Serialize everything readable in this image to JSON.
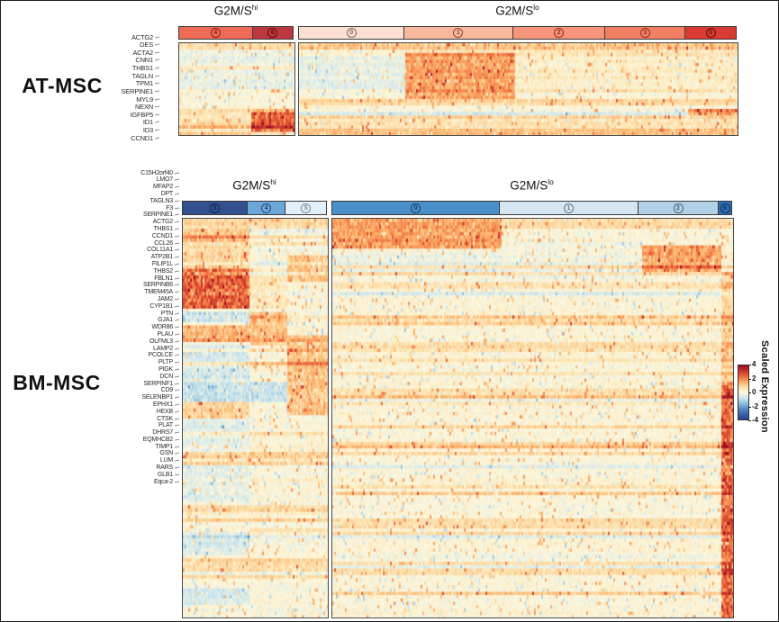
{
  "chart_data": {
    "type": "heatmap",
    "description": "Two single-cell scaled-expression heatmaps (AT-MSC and BM-MSC), columns grouped by cell-cycle status (G2M/S-high vs G2M/S-low) and cluster id, rows are genes.",
    "scale": {
      "label": "Scaled Expression",
      "domain": [
        -4,
        4
      ],
      "ticks": [
        "4",
        "2",
        "0",
        "-2",
        "-4"
      ],
      "colormap": [
        [
          4,
          "#9e0d21"
        ],
        [
          3.3,
          "#c22d27"
        ],
        [
          2.7,
          "#e0512f"
        ],
        [
          2.1,
          "#f58049"
        ],
        [
          1.5,
          "#fbb069"
        ],
        [
          0.9,
          "#fcd9a1"
        ],
        [
          0.35,
          "#fdeec6"
        ],
        [
          0,
          "#fbf6dd"
        ],
        [
          -0.25,
          "#eef2e1"
        ],
        [
          -0.8,
          "#cfe7ee"
        ],
        [
          -1.6,
          "#8fc2dc"
        ],
        [
          -2.6,
          "#4d7fbd"
        ],
        [
          -4,
          "#2a3f93"
        ]
      ]
    },
    "noise": {
      "mean": 0.08,
      "sd": 0.42,
      "warm_speckle": 0.07,
      "cool_speckle": 0.045
    },
    "panels": [
      {
        "panel_label": "AT-MSC",
        "row_labels": [
          "ACTG2",
          "DES",
          "ACTA2",
          "CNN1",
          "THBS1",
          "TAGLN",
          "TPM1",
          "SERPINE1",
          "MYL9",
          "NEXN",
          "IGFBP5",
          "ID1",
          "ID3",
          "CCND1"
        ],
        "column_groups": [
          {
            "label_base": "G2M/S",
            "label_sup": "hi",
            "seed": 11,
            "clusters": [
              {
                "id": "4",
                "frac": 0.648,
                "color": "#ef6b57",
                "ring": "#8c1f16"
              },
              {
                "id": "6",
                "frac": 0.352,
                "color": "#bd3740",
                "ring": "#5c0a12"
              }
            ],
            "hotspots": [
              {
                "x": [
                  0,
                  1
                ],
                "y": [
                  0,
                  0.07
                ],
                "v": 0.7
              },
              {
                "x": [
                  0,
                  1
                ],
                "y": [
                  0.07,
                  0.5
                ],
                "v": -0.35
              },
              {
                "x": [
                  0,
                  0.63
                ],
                "y": [
                  0.7,
                  1
                ],
                "v": 0.6
              },
              {
                "x": [
                  0.63,
                  1
                ],
                "y": [
                  0.7,
                  0.76
                ],
                "v": 1.2
              },
              {
                "x": [
                  0.63,
                  1
                ],
                "y": [
                  0.74,
                  0.95
                ],
                "v": 2.4
              },
              {
                "x": [
                  0,
                  1
                ],
                "y": [
                  0.95,
                  1
                ],
                "v": 0.4
              }
            ]
          },
          {
            "label_base": "G2M/S",
            "label_sup": "lo",
            "seed": 23,
            "clusters": [
              {
                "id": "0",
                "frac": 0.242,
                "color": "#fbdfd3",
                "ring": "#8a6258"
              },
              {
                "id": "1",
                "frac": 0.248,
                "color": "#f9b99e",
                "ring": "#9c4030"
              },
              {
                "id": "2",
                "frac": 0.212,
                "color": "#f6957a",
                "ring": "#8f2f23"
              },
              {
                "id": "3",
                "frac": 0.183,
                "color": "#f37f63",
                "ring": "#8f2f23"
              },
              {
                "id": "5",
                "frac": 0.115,
                "color": "#d93a31",
                "ring": "#66100f"
              }
            ],
            "hotspots": [
              {
                "x": [
                  0,
                  1
                ],
                "y": [
                  0,
                  0.07
                ],
                "v": 1.2
              },
              {
                "x": [
                  0,
                  1
                ],
                "y": [
                  0.07,
                  0.13
                ],
                "v": 0.5
              },
              {
                "x": [
                  0,
                  0.242
                ],
                "y": [
                  0.08,
                  0.55
                ],
                "v": -0.5
              },
              {
                "x": [
                  0.242,
                  0.49
                ],
                "y": [
                  0.09,
                  0.62
                ],
                "v": 1.5
              },
              {
                "x": [
                  0.49,
                  1
                ],
                "y": [
                  0.13,
                  0.55
                ],
                "v": 0.2
              },
              {
                "x": [
                  0.885,
                  1
                ],
                "y": [
                  0.7,
                  0.77
                ],
                "v": 2.2
              },
              {
                "x": [
                  0,
                  1
                ],
                "y": [
                  0.77,
                  0.83
                ],
                "v": 0.8
              },
              {
                "x": [
                  0,
                  1
                ],
                "y": [
                  0.83,
                  1
                ],
                "v": 0.55
              }
            ]
          }
        ]
      },
      {
        "panel_label": "BM-MSC",
        "row_labels": [
          "C15H2orf40",
          "LMO7",
          "MFAP2",
          "DPT",
          "TAGLN3",
          "F3",
          "SERPINE1",
          "ACTG2",
          "THBS1",
          "CCND1",
          "CCL26",
          "COL11A1",
          "ATP2B1",
          "FILIP1L",
          "THBS2",
          "FBLN1",
          "SERPINB6",
          "TMEM45A",
          "JAM2",
          "CYP1B1",
          "PTN",
          "GJA1",
          "WDR86",
          "PLAU",
          "OLFML3",
          "LAMP2",
          "PCOLCE",
          "PLTP",
          "PIGK",
          "DCN",
          "SERPINF1",
          "CD9",
          "SELENBP1",
          "EPHX1",
          "HEXB",
          "CTSK",
          "PLAT",
          "DHRS7",
          "EQMHCB2",
          "TIMP1",
          "GSN",
          "LUM",
          "RARS",
          "GLB1",
          "Eqca-2"
        ],
        "column_groups": [
          {
            "label_base": "G2M/S",
            "label_sup": "hi",
            "seed": 101,
            "clusters": [
              {
                "id": "3",
                "frac": 0.453,
                "color": "#32508d",
                "ring": "#15244d"
              },
              {
                "id": "4",
                "frac": 0.267,
                "color": "#6ba7d8",
                "ring": "#27496f"
              },
              {
                "id": "5",
                "frac": 0.28,
                "color": "#e4eef7",
                "ring": "#7c8b99"
              }
            ],
            "hotspots": [
              {
                "x": [
                  0,
                  1
                ],
                "y": [
                  0,
                  0.022
                ],
                "v": 0.8
              },
              {
                "x": [
                  0,
                  0.453
                ],
                "y": [
                  0.026,
                  0.062
                ],
                "v": 1.3
              },
              {
                "x": [
                  0,
                  0.453
                ],
                "y": [
                  0.066,
                  0.125
                ],
                "v": 0.9
              },
              {
                "x": [
                  0.72,
                  1
                ],
                "y": [
                  0.088,
                  0.16
                ],
                "v": 1.2
              },
              {
                "x": [
                  0,
                  0.453
                ],
                "y": [
                  0.128,
                  0.228
                ],
                "v": 2.4
              },
              {
                "x": [
                  0.453,
                  0.72
                ],
                "y": [
                  0.128,
                  0.228
                ],
                "v": 0.4
              },
              {
                "x": [
                  0,
                  0.453
                ],
                "y": [
                  0.232,
                  0.262
                ],
                "v": -1.1
              },
              {
                "x": [
                  0.453,
                  0.72
                ],
                "y": [
                  0.232,
                  0.32
                ],
                "v": 1.1
              },
              {
                "x": [
                  0,
                  0.453
                ],
                "y": [
                  0.268,
                  0.31
                ],
                "v": 1.2
              },
              {
                "x": [
                  0.72,
                  1
                ],
                "y": [
                  0.29,
                  0.49
                ],
                "v": 1.1
              },
              {
                "x": [
                  0,
                  0.453
                ],
                "y": [
                  0.315,
                  0.405
                ],
                "v": -0.7
              },
              {
                "x": [
                  0,
                  0.72
                ],
                "y": [
                  0.41,
                  0.46
                ],
                "v": -0.9
              },
              {
                "x": [
                  0,
                  0.453
                ],
                "y": [
                  0.46,
                  0.5
                ],
                "v": 0.9
              },
              {
                "x": [
                  0,
                  0.453
                ],
                "y": [
                  0.5,
                  0.585
                ],
                "v": -0.5
              },
              {
                "x": [
                  0,
                  1
                ],
                "y": [
                  0.585,
                  0.615
                ],
                "v": 0.9
              },
              {
                "x": [
                  0,
                  0.453
                ],
                "y": [
                  0.62,
                  0.71
                ],
                "v": -0.45
              },
              {
                "x": [
                  0,
                  1
                ],
                "y": [
                  0.715,
                  0.745
                ],
                "v": 0.8
              },
              {
                "x": [
                  0,
                  0.453
                ],
                "y": [
                  0.775,
                  0.84
                ],
                "v": -0.6
              },
              {
                "x": [
                  0,
                  1
                ],
                "y": [
                  0.855,
                  0.885
                ],
                "v": 0.7
              },
              {
                "x": [
                  0,
                  0.453
                ],
                "y": [
                  0.925,
                  0.965
                ],
                "v": -0.7
              }
            ]
          },
          {
            "label_base": "G2M/S",
            "label_sup": "lo",
            "seed": 211,
            "clusters": [
              {
                "id": "0",
                "frac": 0.42,
                "color": "#4a8fc9",
                "ring": "#1c3f63"
              },
              {
                "id": "1",
                "frac": 0.347,
                "color": "#d6e5f2",
                "ring": "#64788a"
              },
              {
                "id": "2",
                "frac": 0.202,
                "color": "#b1cfe5",
                "ring": "#4c6679"
              },
              {
                "id": "6",
                "frac": 0.031,
                "color": "#2d6db4",
                "ring": "#123156"
              }
            ],
            "hotspots": [
              {
                "x": [
                  0,
                  0.42
                ],
                "y": [
                  0,
                  0.075
                ],
                "v": 1.6
              },
              {
                "x": [
                  0.42,
                  1
                ],
                "y": [
                  0,
                  0.028
                ],
                "v": 0.7
              },
              {
                "x": [
                  0,
                  0.42
                ],
                "y": [
                  0.08,
                  0.135
                ],
                "v": -0.4
              },
              {
                "x": [
                  0.42,
                  0.771
                ],
                "y": [
                  0.06,
                  0.15
                ],
                "v": -0.25
              },
              {
                "x": [
                  0.771,
                  0.969
                ],
                "y": [
                  0.068,
                  0.132
                ],
                "v": 1.5
              },
              {
                "x": [
                  0,
                  1
                ],
                "y": [
                  0.155,
                  0.175
                ],
                "v": 0.6
              },
              {
                "x": [
                  0,
                  1
                ],
                "y": [
                  0.243,
                  0.268
                ],
                "v": 1.0
              },
              {
                "x": [
                  0.969,
                  1
                ],
                "y": [
                  0.13,
                  0.405
                ],
                "v": 0.8
              },
              {
                "x": [
                  0.969,
                  1
                ],
                "y": [
                  0.405,
                  1
                ],
                "v": 2.2
              },
              {
                "x": [
                  0,
                  1
                ],
                "y": [
                  0.31,
                  0.33
                ],
                "v": 0.6
              },
              {
                "x": [
                  0,
                  1
                ],
                "y": [
                  0.425,
                  0.45
                ],
                "v": 0.7
              },
              {
                "x": [
                  0,
                  1
                ],
                "y": [
                  0.555,
                  0.578
                ],
                "v": 0.8
              },
              {
                "x": [
                  0,
                  1
                ],
                "y": [
                  0.655,
                  0.675
                ],
                "v": 0.6
              },
              {
                "x": [
                  0,
                  1
                ],
                "y": [
                  0.755,
                  0.775
                ],
                "v": 0.7
              },
              {
                "x": [
                  0,
                  1
                ],
                "y": [
                  0.875,
                  0.895
                ],
                "v": 0.7
              }
            ]
          }
        ]
      }
    ]
  }
}
